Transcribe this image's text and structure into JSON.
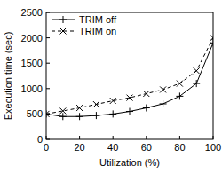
{
  "chart_data": {
    "type": "line",
    "x_label": "Utilization (%)",
    "y_label": "Execution time (sec)",
    "x": [
      0,
      10,
      20,
      30,
      40,
      50,
      60,
      70,
      80,
      90,
      100
    ],
    "series": [
      {
        "name": "TRIM off",
        "color": "#000000",
        "marker": "plus",
        "line_style": "solid",
        "values": [
          500,
          450,
          450,
          470,
          500,
          550,
          620,
          700,
          850,
          1100,
          1900
        ]
      },
      {
        "name": "TRIM on",
        "color": "#000000",
        "marker": "x",
        "line_style": "dashed",
        "values": [
          500,
          560,
          620,
          690,
          760,
          820,
          900,
          980,
          1100,
          1350,
          2000
        ]
      }
    ],
    "xlim": [
      0,
      100
    ],
    "xticks": [
      0,
      20,
      40,
      60,
      80,
      100
    ],
    "ylim": [
      0,
      2500
    ],
    "yticks": [
      0,
      500,
      1000,
      1500,
      2000,
      2500
    ],
    "legend": "upper left"
  }
}
